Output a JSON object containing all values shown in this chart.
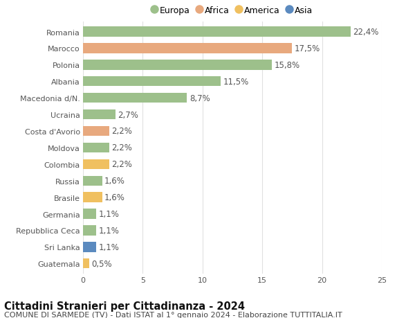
{
  "countries": [
    "Romania",
    "Marocco",
    "Polonia",
    "Albania",
    "Macedonia d/N.",
    "Ucraina",
    "Costa d'Avorio",
    "Moldova",
    "Colombia",
    "Russia",
    "Brasile",
    "Germania",
    "Repubblica Ceca",
    "Sri Lanka",
    "Guatemala"
  ],
  "values": [
    22.4,
    17.5,
    15.8,
    11.5,
    8.7,
    2.7,
    2.2,
    2.2,
    2.2,
    1.6,
    1.6,
    1.1,
    1.1,
    1.1,
    0.5
  ],
  "labels": [
    "22,4%",
    "17,5%",
    "15,8%",
    "11,5%",
    "8,7%",
    "2,7%",
    "2,2%",
    "2,2%",
    "2,2%",
    "1,6%",
    "1,6%",
    "1,1%",
    "1,1%",
    "1,1%",
    "0,5%"
  ],
  "continents": [
    "Europa",
    "Africa",
    "Europa",
    "Europa",
    "Europa",
    "Europa",
    "Africa",
    "Europa",
    "America",
    "Europa",
    "America",
    "Europa",
    "Europa",
    "Asia",
    "America"
  ],
  "colors": {
    "Europa": "#9dc08b",
    "Africa": "#e8a97e",
    "America": "#f0c060",
    "Asia": "#5b8abf"
  },
  "legend_order": [
    "Europa",
    "Africa",
    "America",
    "Asia"
  ],
  "xlim": [
    0,
    25
  ],
  "xticks": [
    0,
    5,
    10,
    15,
    20,
    25
  ],
  "title": "Cittadini Stranieri per Cittadinanza - 2024",
  "subtitle": "COMUNE DI SARMEDE (TV) - Dati ISTAT al 1° gennaio 2024 - Elaborazione TUTTITALIA.IT",
  "bg_color": "#ffffff",
  "grid_color": "#e0e0e0",
  "bar_height": 0.6,
  "label_fontsize": 8.5,
  "tick_fontsize": 8.0,
  "title_fontsize": 10.5,
  "subtitle_fontsize": 8.0
}
